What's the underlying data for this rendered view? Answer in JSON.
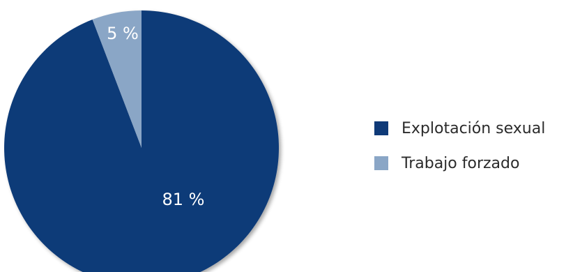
{
  "chart_data": {
    "type": "pie",
    "slices": [
      {
        "label": "Explotación sexual",
        "value": 81,
        "color": "#0f3a78",
        "value_label": "81 %"
      },
      {
        "label": "Trabajo forzado",
        "value": 5,
        "color": "#8aa6c6",
        "value_label": "5 %"
      }
    ],
    "legend": [
      {
        "label": "Explotación sexual",
        "color": "#0f3a78"
      },
      {
        "label": "Trabajo forzado",
        "color": "#8aa6c6"
      }
    ],
    "legend_position": "right"
  }
}
